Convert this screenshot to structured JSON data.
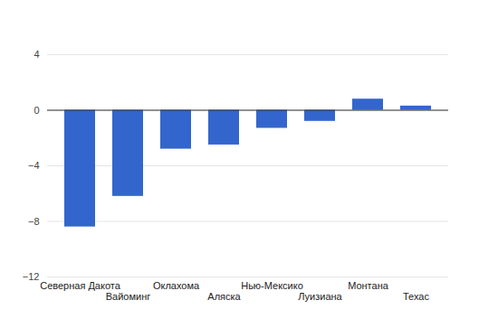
{
  "chart_data": {
    "type": "bar",
    "categories": [
      "Северная Дакота",
      "Вайоминг",
      "Оклахома",
      "Аляска",
      "Нью-Мексико",
      "Луизиана",
      "Монтана",
      "Техас"
    ],
    "values": [
      -8.4,
      -6.2,
      -2.8,
      -2.5,
      -1.3,
      -0.8,
      0.8,
      0.3
    ],
    "color": "#3366cc",
    "ylim": [
      -12,
      4
    ],
    "yticks": [
      -12,
      -8,
      -4,
      0,
      4
    ],
    "grid": true
  }
}
